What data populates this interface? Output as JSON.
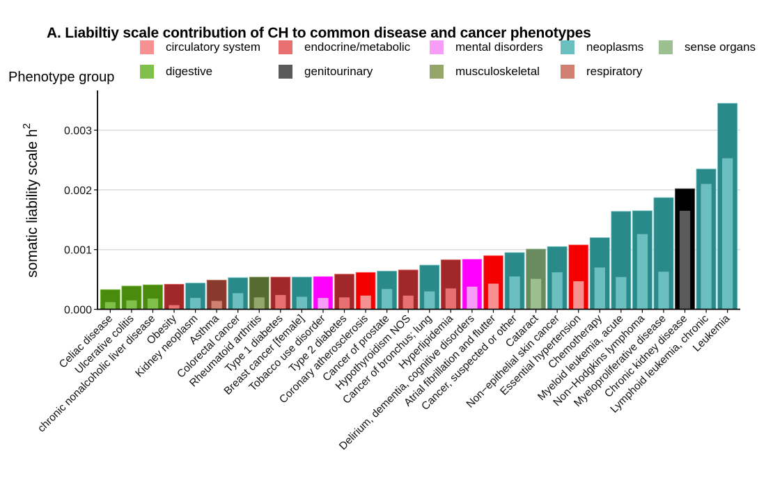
{
  "chart_data": {
    "type": "bar",
    "title": "A. Liabiltiy scale contribution of CH to common disease and cancer phenotypes",
    "xlabel": "",
    "ylabel": "somatic liability scale  h",
    "ylabel_superscript": "2",
    "ylim": [
      0,
      0.0036
    ],
    "yticks": [
      0.0,
      0.001,
      0.002,
      0.003
    ],
    "ytick_labels": [
      "0.000",
      "0.001",
      "0.002",
      "0.003"
    ],
    "grid": "horizontal major",
    "legend": {
      "title": "Phenotype group",
      "placement": "top",
      "entries": [
        {
          "group": "circulatory system",
          "color": "#f79090"
        },
        {
          "group": "endocrine/metabolic",
          "color": "#e87070"
        },
        {
          "group": "mental disorders",
          "color": "#f79cf7"
        },
        {
          "group": "neoplasms",
          "color": "#6bbfbf"
        },
        {
          "group": "sense organs",
          "color": "#9cbf90"
        },
        {
          "group": "digestive",
          "color": "#7fbf4a"
        },
        {
          "group": "genitourinary",
          "color": "#5a5a5a"
        },
        {
          "group": "musculoskeletal",
          "color": "#94a66a"
        },
        {
          "group": "respiratory",
          "color": "#d08070"
        }
      ]
    },
    "group_colors": {
      "circulatory system": {
        "outer": "#f50000",
        "inner": "#f79090"
      },
      "endocrine/metabolic": {
        "outer": "#a02828",
        "inner": "#e87070"
      },
      "mental disorders": {
        "outer": "#ff00ff",
        "inner": "#f79cf7"
      },
      "neoplasms": {
        "outer": "#2a8a8a",
        "inner": "#6bbfbf"
      },
      "sense organs": {
        "outer": "#6a8a60",
        "inner": "#9cbf90"
      },
      "digestive": {
        "outer": "#4a8a0c",
        "inner": "#7fbf4a"
      },
      "genitourinary": {
        "outer": "#000000",
        "inner": "#5a5a5a"
      },
      "musculoskeletal": {
        "outer": "#556b2f",
        "inner": "#94a66a"
      },
      "respiratory": {
        "outer": "#883a2c",
        "inner": "#d08070"
      }
    },
    "series": [
      {
        "name": "total",
        "description": "outer (dark) bar"
      },
      {
        "name": "inner",
        "description": "inner (light) bar"
      }
    ],
    "categories": [
      {
        "label": "Celiac disease",
        "group": "digestive",
        "total": 0.00033,
        "inner": 0.00012
      },
      {
        "label": "Ulcerative colitis",
        "group": "digestive",
        "total": 0.00039,
        "inner": 0.00015
      },
      {
        "label": "chronic nonalcoholic liver disease",
        "group": "digestive",
        "total": 0.00041,
        "inner": 0.00018
      },
      {
        "label": "Obesity",
        "group": "endocrine/metabolic",
        "total": 0.00042,
        "inner": 7e-05
      },
      {
        "label": "Kidney neoplasm",
        "group": "neoplasms",
        "total": 0.00044,
        "inner": 0.00019
      },
      {
        "label": "Asthma",
        "group": "respiratory",
        "total": 0.00049,
        "inner": 0.00014
      },
      {
        "label": "Colorectal cancer",
        "group": "neoplasms",
        "total": 0.00053,
        "inner": 0.00027
      },
      {
        "label": "Rheumatoid arthritis",
        "group": "musculoskeletal",
        "total": 0.00054,
        "inner": 0.0002
      },
      {
        "label": "Type 1 diabetes",
        "group": "endocrine/metabolic",
        "total": 0.00054,
        "inner": 0.00024
      },
      {
        "label": "Breast cancer [female]",
        "group": "neoplasms",
        "total": 0.00054,
        "inner": 0.00021
      },
      {
        "label": "Tobacco use disorder",
        "group": "mental disorders",
        "total": 0.00055,
        "inner": 0.00019
      },
      {
        "label": "Type 2 diabetes",
        "group": "endocrine/metabolic",
        "total": 0.00059,
        "inner": 0.0002
      },
      {
        "label": "Coronary atherosclerosis",
        "group": "circulatory system",
        "total": 0.00062,
        "inner": 0.00023
      },
      {
        "label": "Cancer of prostate",
        "group": "neoplasms",
        "total": 0.00064,
        "inner": 0.00034
      },
      {
        "label": "Hypothyroidism NOS",
        "group": "endocrine/metabolic",
        "total": 0.00066,
        "inner": 0.00023
      },
      {
        "label": "Cancer of bronchus; lung",
        "group": "neoplasms",
        "total": 0.00074,
        "inner": 0.0003
      },
      {
        "label": "Hyperlipidemia",
        "group": "endocrine/metabolic",
        "total": 0.00083,
        "inner": 0.00035
      },
      {
        "label": "Delirium, dementia, cognitive disorders",
        "group": "mental disorders",
        "total": 0.00084,
        "inner": 0.00038
      },
      {
        "label": "Atrial fibrillation and flutter",
        "group": "circulatory system",
        "total": 0.0009,
        "inner": 0.00043
      },
      {
        "label": "Cancer, suspected or other",
        "group": "neoplasms",
        "total": 0.00095,
        "inner": 0.00055
      },
      {
        "label": "Cataract",
        "group": "sense organs",
        "total": 0.00101,
        "inner": 0.00051
      },
      {
        "label": "Non−epithelial skin cancer",
        "group": "neoplasms",
        "total": 0.00105,
        "inner": 0.00062
      },
      {
        "label": "Essential hypertension",
        "group": "circulatory system",
        "total": 0.00108,
        "inner": 0.00047
      },
      {
        "label": "Chemotherapy",
        "group": "neoplasms",
        "total": 0.0012,
        "inner": 0.0007
      },
      {
        "label": "Myeloid leukemia, acute",
        "group": "neoplasms",
        "total": 0.00164,
        "inner": 0.00054
      },
      {
        "label": "Non−Hodgkins lymphoma",
        "group": "neoplasms",
        "total": 0.00165,
        "inner": 0.00126
      },
      {
        "label": "Myeloproliferative disease",
        "group": "neoplasms",
        "total": 0.00187,
        "inner": 0.00063
      },
      {
        "label": "Chronic kidney disease",
        "group": "genitourinary",
        "total": 0.00202,
        "inner": 0.00165
      },
      {
        "label": "Lymphoid leukemia, chronic",
        "group": "neoplasms",
        "total": 0.00235,
        "inner": 0.0021
      },
      {
        "label": "Leukemia",
        "group": "neoplasms",
        "total": 0.00345,
        "inner": 0.00253
      }
    ]
  }
}
